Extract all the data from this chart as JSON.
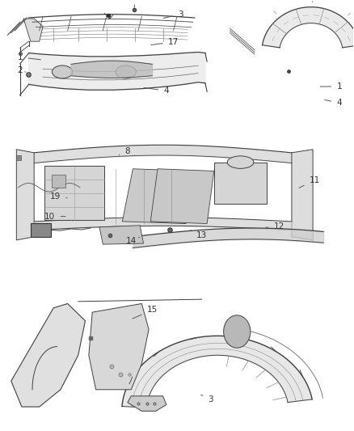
{
  "background_color": "#ffffff",
  "fig_width": 4.38,
  "fig_height": 5.33,
  "dpi": 100,
  "text_color": "#333333",
  "line_color": "#555555",
  "label_fontsize": 7.5,
  "part_line_color": "#404040",
  "part_fill_color": "#f0f0f0",
  "part_fill_dark": "#d8d8d8",
  "labels": [
    {
      "num": "1",
      "xt": 0.055,
      "yt": 0.868,
      "xp": 0.12,
      "yp": 0.862
    },
    {
      "num": "2",
      "xt": 0.055,
      "yt": 0.838,
      "xp": 0.078,
      "yp": 0.832
    },
    {
      "num": "3",
      "xt": 0.51,
      "yt": 0.968,
      "xp": 0.455,
      "yp": 0.958
    },
    {
      "num": "4",
      "xt": 0.47,
      "yt": 0.79,
      "xp": 0.4,
      "yp": 0.798
    },
    {
      "num": "17",
      "xt": 0.49,
      "yt": 0.904,
      "xp": 0.42,
      "yp": 0.896
    },
    {
      "num": "1",
      "xt": 0.96,
      "yt": 0.8,
      "xp": 0.9,
      "yp": 0.8
    },
    {
      "num": "4",
      "xt": 0.96,
      "yt": 0.762,
      "xp": 0.912,
      "yp": 0.77
    },
    {
      "num": "8",
      "xt": 0.36,
      "yt": 0.65,
      "xp": 0.33,
      "yp": 0.638
    },
    {
      "num": "11",
      "xt": 0.89,
      "yt": 0.582,
      "xp": 0.84,
      "yp": 0.562
    },
    {
      "num": "19",
      "xt": 0.155,
      "yt": 0.545,
      "xp": 0.195,
      "yp": 0.54
    },
    {
      "num": "10",
      "xt": 0.14,
      "yt": 0.498,
      "xp": 0.19,
      "yp": 0.498
    },
    {
      "num": "12",
      "xt": 0.79,
      "yt": 0.474,
      "xp": 0.745,
      "yp": 0.472
    },
    {
      "num": "13",
      "xt": 0.57,
      "yt": 0.454,
      "xp": 0.538,
      "yp": 0.466
    },
    {
      "num": "14",
      "xt": 0.37,
      "yt": 0.44,
      "xp": 0.4,
      "yp": 0.452
    },
    {
      "num": "15",
      "xt": 0.43,
      "yt": 0.28,
      "xp": 0.368,
      "yp": 0.258
    },
    {
      "num": "3",
      "xt": 0.596,
      "yt": 0.072,
      "xp": 0.562,
      "yp": 0.085
    }
  ]
}
